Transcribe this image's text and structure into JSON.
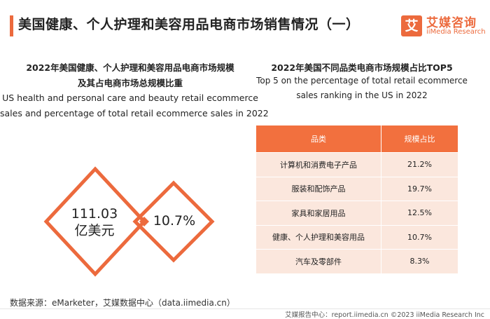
{
  "header": {
    "title": "美国健康、个人护理和美容用品电商市场销售情况（一）"
  },
  "logo": {
    "mark": "艾",
    "name_cn": "艾媒咨询",
    "name_en": "iiMedia Research"
  },
  "left_panel": {
    "title_line1": "2022年美国健康、个人护理和美容用品电商市场规模",
    "title_line2": "及其占电商市场总规模比重",
    "subtitle_line1": "US health and personal care and beauty retail ecommerce",
    "subtitle_line2": "sales and percentage of total retail ecommerce sales in 2022",
    "market_size_line1": "111.03",
    "market_size_line2": "亿美元",
    "share_percent": "10.7%"
  },
  "right_panel": {
    "title": "2022年美国不同品类电商市场规模占比TOP5",
    "subtitle_line1": "Top 5 on the percentage of total retail ecommerce",
    "subtitle_line2": "sales ranking in the US in 2022",
    "table": {
      "headers": [
        "品类",
        "规模占比"
      ],
      "rows": [
        {
          "category": "计算机和消费电子产品",
          "share": "21.2%"
        },
        {
          "category": "服装和配饰产品",
          "share": "19.7%"
        },
        {
          "category": "家具和家居用品",
          "share": "12.5%"
        },
        {
          "category": "健康、个人护理和美容用品",
          "share": "10.7%"
        },
        {
          "category": "汽车及零部件",
          "share": "8.3%"
        }
      ]
    }
  },
  "source": "数据来源：eMarketer，艾媒数据中心（data.iimedia.cn）",
  "footer": "艾媒报告中心：report.iimedia.cn ©2023 iiMedia Research Inc",
  "colors": {
    "accent": "#ec6a3d",
    "table_header": "#f2703e",
    "table_row": "#fbe7dd"
  }
}
